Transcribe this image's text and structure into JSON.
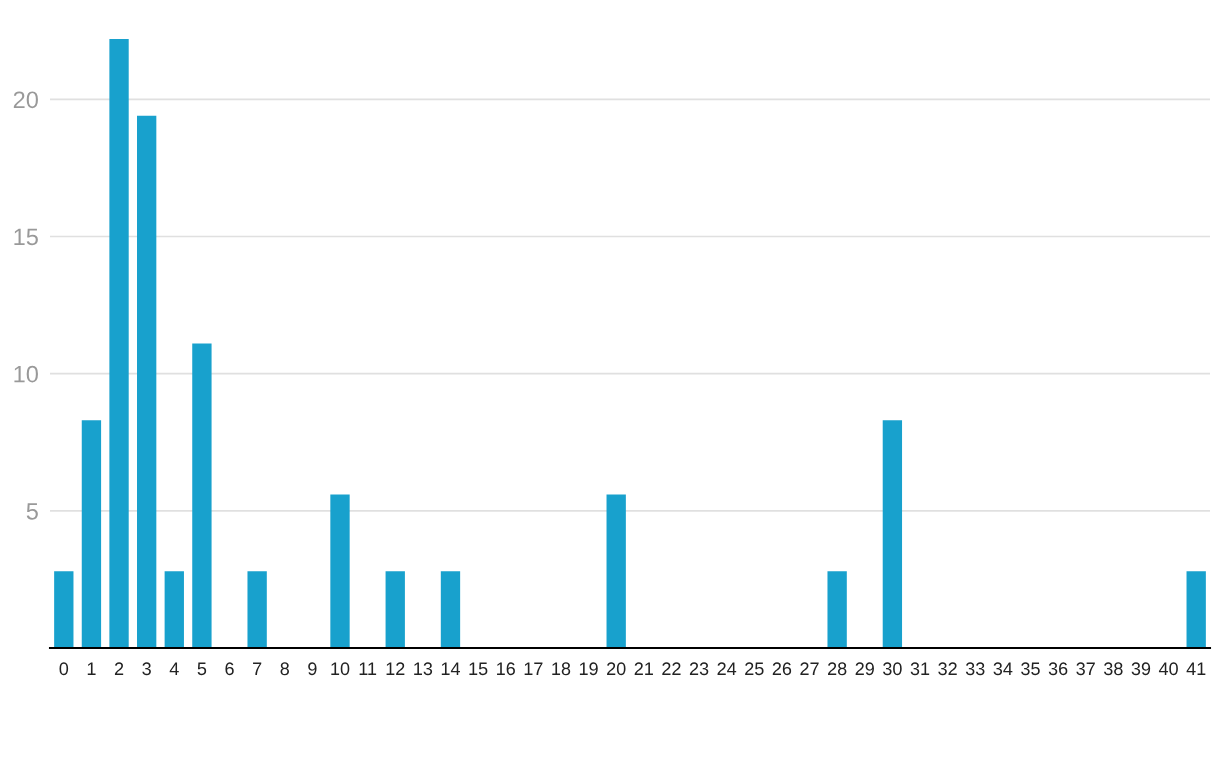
{
  "chart_data": {
    "type": "bar",
    "categories": [
      "0",
      "1",
      "2",
      "3",
      "4",
      "5",
      "6",
      "7",
      "8",
      "9",
      "10",
      "11",
      "12",
      "13",
      "14",
      "15",
      "16",
      "17",
      "18",
      "19",
      "20",
      "21",
      "22",
      "23",
      "24",
      "25",
      "26",
      "27",
      "28",
      "29",
      "30",
      "31",
      "32",
      "33",
      "34",
      "35",
      "36",
      "37",
      "38",
      "39",
      "40",
      "41"
    ],
    "values": [
      2.8,
      8.3,
      22.2,
      19.4,
      2.8,
      11.1,
      0,
      2.8,
      0,
      0,
      5.6,
      0,
      2.8,
      0,
      2.8,
      0,
      0,
      0,
      0,
      0,
      5.6,
      0,
      0,
      0,
      0,
      0,
      0,
      0,
      2.8,
      0,
      8.3,
      0,
      0,
      0,
      0,
      0,
      0,
      0,
      0,
      0,
      0,
      2.8
    ],
    "color": "#18a1cd",
    "ylim": [
      0,
      22.2
    ],
    "yticks": [
      {
        "value": 0,
        "label": null
      },
      5,
      10,
      15,
      20
    ],
    "grid": "y",
    "legend": false
  }
}
